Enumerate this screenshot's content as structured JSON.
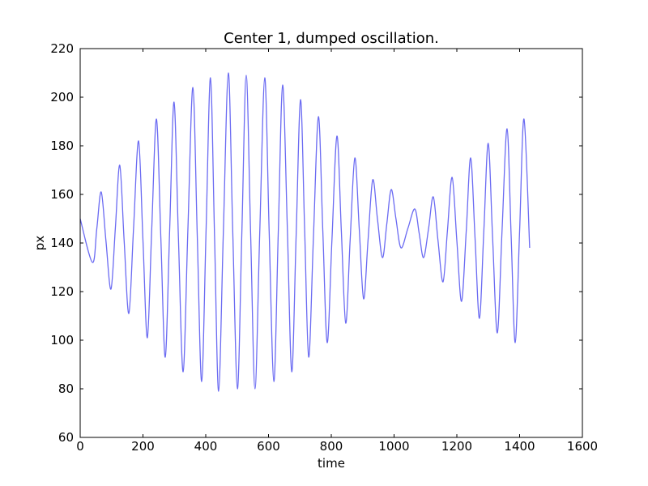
{
  "chart_data": {
    "type": "line",
    "title": "Center 1, dumped oscillation.",
    "xlabel": "time",
    "ylabel": "px",
    "x": [
      0,
      39,
      53,
      67,
      82,
      98,
      112,
      126,
      140,
      155,
      170,
      186,
      200,
      214,
      228,
      243,
      257,
      271,
      285,
      299,
      313,
      328,
      343,
      359,
      373,
      387,
      401,
      415,
      428,
      441,
      456,
      472,
      486,
      501,
      515,
      529,
      543,
      557,
      572,
      588,
      602,
      617,
      631,
      645,
      660,
      674,
      688,
      702,
      715,
      728,
      743,
      759,
      773,
      787,
      802,
      818,
      832,
      846,
      860,
      875,
      889,
      903,
      917,
      932,
      947,
      963,
      977,
      991,
      1006,
      1022,
      1044,
      1066,
      1080,
      1094,
      1110,
      1125,
      1140,
      1156,
      1170,
      1185,
      1200,
      1215,
      1230,
      1244,
      1258,
      1272,
      1286,
      1300,
      1314,
      1329,
      1344,
      1360,
      1373,
      1386,
      1400,
      1414,
      1432
    ],
    "series": [
      {
        "color": "#6b6bf2",
        "values": [
          150,
          132,
          146,
          161,
          141,
          121,
          146,
          172,
          141,
          111,
          146,
          182,
          141,
          101,
          146,
          191,
          142,
          93,
          145,
          198,
          142,
          87,
          145,
          204,
          143,
          83,
          145,
          208,
          143,
          79,
          144,
          210,
          145,
          80,
          144,
          209,
          144,
          80,
          144,
          208,
          145,
          83,
          144,
          205,
          146,
          87,
          143,
          199,
          146,
          93,
          142,
          192,
          145,
          99,
          141,
          184,
          145,
          107,
          141,
          175,
          146,
          117,
          141,
          166,
          150,
          134,
          148,
          162,
          150,
          138,
          146,
          154,
          144,
          134,
          146,
          159,
          141,
          124,
          145,
          167,
          141,
          116,
          145,
          175,
          142,
          109,
          145,
          181,
          142,
          103,
          145,
          187,
          143,
          99,
          145,
          191,
          138
        ]
      }
    ],
    "xlim": [
      0,
      1600
    ],
    "xticks": [
      0,
      200,
      400,
      600,
      800,
      1000,
      1200,
      1400,
      1600
    ],
    "ylim": [
      60,
      220
    ],
    "yticks": [
      60,
      80,
      100,
      120,
      140,
      160,
      180,
      200,
      220
    ]
  }
}
